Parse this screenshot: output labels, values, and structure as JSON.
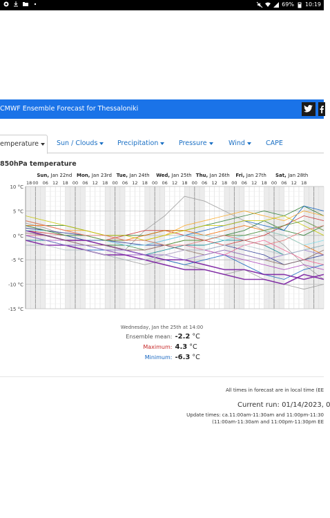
{
  "status_bar": {
    "battery": "69%",
    "time": "10:19",
    "icons_left": [
      "chrome-icon",
      "download-icon",
      "folder-icon",
      "dot-icon"
    ],
    "icons_right": [
      "mute-icon",
      "wifi-icon",
      "signal-icon",
      "battery-icon"
    ]
  },
  "header": {
    "title": "CMWF Ensemble Forecast for Thessaloniki",
    "twitter_icon": "twitter-icon",
    "facebook_icon": "facebook-icon"
  },
  "tabs": [
    {
      "label": "emperature",
      "active": true
    },
    {
      "label": "Sun / Clouds",
      "active": false
    },
    {
      "label": "Precipitation",
      "active": false
    },
    {
      "label": "Pressure",
      "active": false
    },
    {
      "label": "Wind",
      "active": false
    },
    {
      "label": "CAPE",
      "active": false
    }
  ],
  "chart_title": "850hPa temperature",
  "chart_data": {
    "type": "line",
    "ylabel": "",
    "ylim": [
      -15,
      10
    ],
    "y_ticks": [
      "10 °C",
      "5 °C",
      "0 °C",
      "-5 °C",
      "-10 °C",
      "-15 °C"
    ],
    "x_range_hours": [
      0,
      174
    ],
    "day_labels": [
      {
        "label": "Sun, Jan 22nd",
        "hour": 0
      },
      {
        "label": "Mon, Jan 23rd",
        "hour": 24
      },
      {
        "label": "Tue, Jan 24th",
        "hour": 48
      },
      {
        "label": "Wed, Jan 25th",
        "hour": 72
      },
      {
        "label": "Thu, Jan 26th",
        "hour": 96
      },
      {
        "label": "Fri, Jan 27th",
        "hour": 120
      },
      {
        "label": "Sat, Jan 28th",
        "hour": 144
      }
    ],
    "hour_labels": [
      "18",
      "00",
      "06",
      "12",
      "18",
      "00",
      "06",
      "12",
      "18",
      "00",
      "06",
      "12",
      "18",
      "00",
      "06",
      "12",
      "18",
      "00",
      "06",
      "12",
      "18",
      "00",
      "06",
      "12",
      "18",
      "00",
      "06",
      "12",
      "18"
    ],
    "hour_offsets": [
      -6,
      0,
      6,
      12,
      18,
      24,
      30,
      36,
      42,
      48,
      54,
      60,
      66,
      72,
      78,
      84,
      90,
      96,
      102,
      108,
      114,
      120,
      126,
      132,
      138,
      144,
      150,
      156,
      162
    ],
    "night_bands": [
      [
        -6,
        6
      ],
      [
        18,
        30
      ],
      [
        42,
        54
      ],
      [
        66,
        78
      ],
      [
        90,
        102
      ],
      [
        114,
        126
      ],
      [
        138,
        150
      ],
      [
        162,
        174
      ]
    ],
    "grid": true,
    "series": [
      {
        "color": "#9e9e9e",
        "values": [
          2.5,
          1.5,
          0,
          -1,
          -2,
          -3,
          1,
          4,
          8,
          7,
          5,
          3,
          1,
          -2,
          -6,
          -9
        ]
      },
      {
        "color": "#9e9e9e",
        "values": [
          0,
          -1,
          -2,
          -3,
          -4,
          -5,
          -6,
          -5,
          -6,
          -7,
          -8,
          -7,
          -9,
          -10,
          -11,
          -10
        ]
      },
      {
        "color": "#cc3333",
        "values": [
          1,
          0.5,
          0,
          -1,
          -1,
          0,
          1,
          1,
          0,
          -1,
          -2,
          -1,
          0,
          2,
          4,
          3
        ]
      },
      {
        "color": "#2e7d32",
        "values": [
          3,
          2,
          2,
          1,
          0,
          0,
          0,
          1,
          1,
          2,
          3,
          4,
          5,
          4,
          6,
          4
        ]
      },
      {
        "color": "#2e7d32",
        "values": [
          1,
          0,
          -1,
          -1,
          -2,
          -2,
          -3,
          -2,
          -1,
          -1,
          0,
          1,
          3,
          1,
          0,
          2
        ]
      },
      {
        "color": "#1565c0",
        "values": [
          2,
          1,
          0,
          -1,
          -1,
          -2,
          -2,
          -1,
          0,
          1,
          2,
          3,
          2,
          1,
          6,
          5
        ]
      },
      {
        "color": "#1565c0",
        "values": [
          0,
          -1,
          -2,
          -3,
          -3,
          -4,
          -4,
          -5,
          -6,
          -5,
          -4,
          -6,
          -8,
          -9,
          -7,
          -6
        ]
      },
      {
        "color": "#283593",
        "values": [
          1.5,
          1,
          0.5,
          0,
          -1,
          -1.5,
          -2,
          -2,
          -3,
          -3,
          -2,
          -3,
          -4,
          -6,
          -5,
          -4
        ]
      },
      {
        "color": "#f9a825",
        "values": [
          3,
          2,
          1,
          1,
          0,
          -1,
          -1,
          0,
          2,
          3,
          4,
          5,
          4,
          3,
          5,
          4
        ]
      },
      {
        "color": "#ef6c00",
        "values": [
          2,
          2,
          1,
          0,
          -1,
          -1,
          0,
          1,
          1,
          0,
          1,
          2,
          1,
          0,
          -2,
          -4
        ]
      },
      {
        "color": "#f06292",
        "values": [
          0,
          0,
          -1,
          -1,
          -2,
          -3,
          -3,
          -2,
          -2,
          -3,
          -4,
          -2,
          -1,
          -3,
          -5,
          -6
        ]
      },
      {
        "color": "#00838f",
        "values": [
          -1,
          -1,
          -2,
          -2,
          -3,
          -3,
          -4,
          -3,
          -2,
          -2,
          -1,
          -1,
          -2,
          -4,
          -3,
          -2
        ]
      },
      {
        "color": "#ab47bc",
        "values": [
          0,
          -1,
          -1,
          -2,
          -3,
          -4,
          -4,
          -4,
          -3,
          -3,
          -4,
          -5,
          -6,
          -7,
          -6,
          -7
        ]
      },
      {
        "color": "#7b1fa2",
        "values": [
          -1,
          -2,
          -2,
          -3,
          -4,
          -4,
          -5,
          -6,
          -7,
          -7,
          -8,
          -9,
          -9,
          -10,
          -8,
          -9
        ]
      },
      {
        "color": "#7b1fa2",
        "values": [
          1,
          0,
          -1,
          -1,
          -2,
          -3,
          -4,
          -5,
          -5,
          -6,
          -7,
          -7,
          -8,
          -8,
          -9,
          -8
        ]
      },
      {
        "color": "#8d6e63",
        "values": [
          0.5,
          0,
          -1,
          -2,
          -2,
          -3,
          -3,
          -2,
          -3,
          -4,
          -3,
          -4,
          -5,
          -6,
          -5,
          -3
        ]
      },
      {
        "color": "#c6c600",
        "values": [
          4,
          3,
          2,
          1,
          0,
          0,
          -1,
          0,
          1,
          2,
          2,
          3,
          3,
          4,
          2,
          0
        ]
      },
      {
        "color": "#80deea",
        "values": [
          1,
          1,
          0,
          0,
          -1,
          -2,
          -2,
          -1,
          0,
          0,
          -1,
          0,
          1,
          0,
          -2,
          -1
        ]
      },
      {
        "color": "#9575cd",
        "values": [
          0,
          -1,
          -2,
          -2,
          -3,
          -3,
          -4,
          -4,
          -5,
          -4,
          -3,
          -4,
          -5,
          -4,
          -3,
          -4
        ]
      },
      {
        "color": "#558b2f",
        "values": [
          2,
          1,
          0,
          0,
          -1,
          -1,
          -1,
          -2,
          -1,
          -1,
          0,
          0,
          1,
          2,
          3,
          1
        ]
      },
      {
        "color": "#b0bec5",
        "values": [
          -2,
          -2,
          -3,
          -3,
          -4,
          -5,
          -5,
          -4,
          -3,
          -3,
          -2,
          -2,
          -3,
          -4,
          -3,
          -2
        ]
      },
      {
        "color": "#e57373",
        "values": [
          3,
          2,
          1,
          0,
          0,
          -1,
          -1,
          -2,
          -2,
          -1,
          0,
          -1,
          -2,
          -1,
          1,
          2
        ]
      }
    ]
  },
  "readout": {
    "date": "Wednesday, Jan the 25th at 14:00",
    "mean_label": "Ensemble mean:",
    "mean_value": "-2.2",
    "max_label": "Maximum:",
    "max_value": "4.3",
    "min_label": "Minimum:",
    "min_value": "-6.3",
    "unit": "°C",
    "max_color": "#c62828",
    "min_color": "#1565c0"
  },
  "footer": {
    "local_time_note": "All times in forecast are in local time (EE",
    "current_run": "Current run: 01/14/2023, 0",
    "update_line1": "Update times: ca.11:00am-11:30am and 11:00pm-11:30",
    "update_line2": "(11:00am-11:30am and 11:00pm-11:30pm EE"
  }
}
